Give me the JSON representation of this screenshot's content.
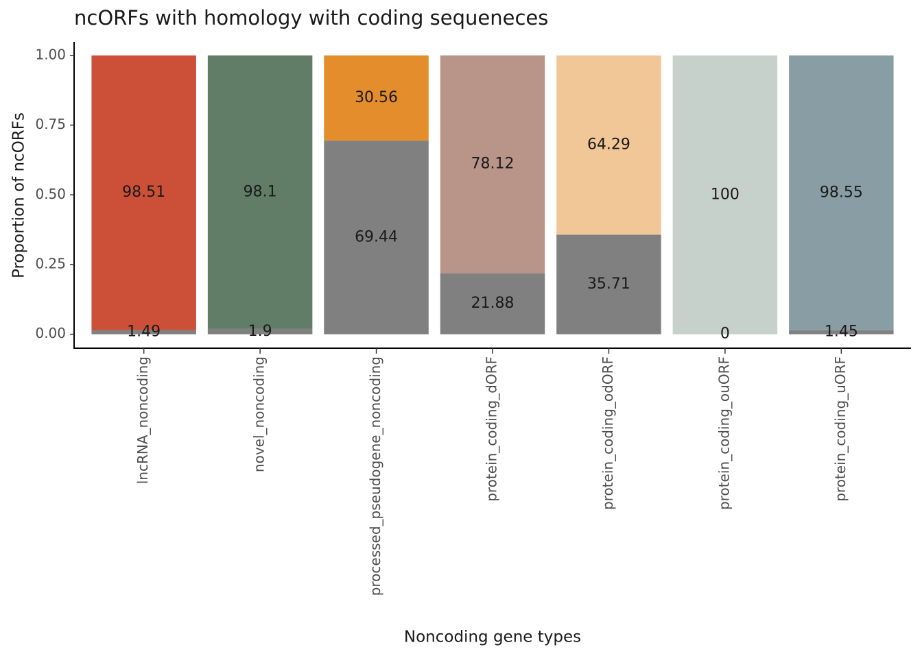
{
  "chart_data": {
    "type": "stacked-bar",
    "title": "ncORFs with homology with coding sequeneces",
    "x_label": "Noncoding gene types",
    "y_label": "Proportion of ncORFs",
    "categories": [
      "lncRNA_noncoding",
      "novel_noncoding",
      "processed_pseudogene_noncoding",
      "protein_coding_dORF",
      "protein_coding_odORF",
      "protein_coding_ouORF",
      "protein_coding_uORF"
    ],
    "series": [
      {
        "color": "#808080",
        "values": [
          0.0149,
          0.019,
          0.6944,
          0.2188,
          0.3571,
          0,
          0.0145
        ],
        "value_labels": [
          "1.49",
          "1.9",
          "69.44",
          "21.88",
          "35.71",
          "0",
          "1.45"
        ]
      },
      {
        "colors": [
          "#cc5038",
          "#627d67",
          "#e38d2c",
          "#b99489",
          "#f2c797",
          "#c7d1cc",
          "#899da4"
        ],
        "values": [
          0.9851,
          0.981,
          0.3056,
          0.7812,
          0.6429,
          1,
          0.9855
        ],
        "value_labels": [
          "98.51",
          "98.1",
          "30.56",
          "78.12",
          "64.29",
          "100",
          "98.55"
        ]
      }
    ],
    "ylim": [
      -0.05,
      1.05
    ],
    "yticks": [
      {
        "value": 0,
        "label": "0.00"
      },
      {
        "value": 0.25,
        "label": "0.25"
      },
      {
        "value": 0.5,
        "label": "0.50"
      },
      {
        "value": 0.75,
        "label": "0.75"
      },
      {
        "value": 1,
        "label": "1.00"
      }
    ],
    "grid": false
  }
}
